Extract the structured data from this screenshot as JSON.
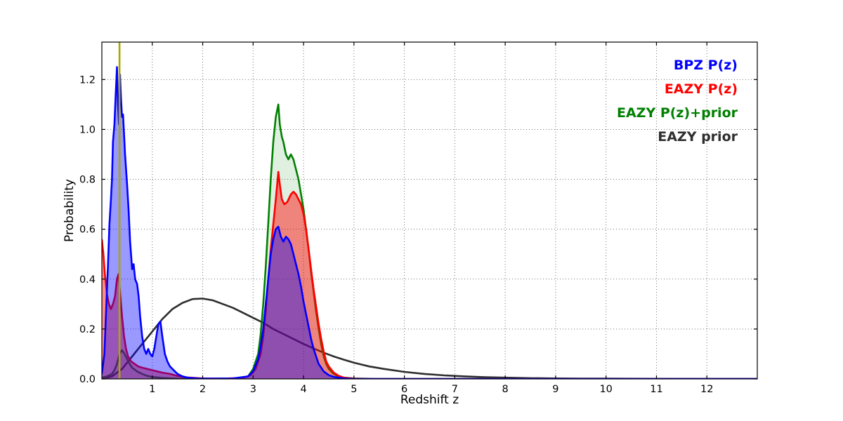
{
  "figure": {
    "background": "#ffffff",
    "frame_color": "#000000",
    "grid_style": "dotted"
  },
  "chart_data": {
    "type": "line",
    "title": "",
    "xlabel": "Redshift z",
    "ylabel": "Probability",
    "xlim": [
      0,
      13
    ],
    "ylim": [
      0,
      1.35
    ],
    "xticks": [
      1,
      2,
      3,
      4,
      5,
      6,
      7,
      8,
      9,
      10,
      11,
      12
    ],
    "yticks": [
      0.0,
      0.2,
      0.4,
      0.6,
      0.8,
      1.0,
      1.2
    ],
    "grid": "dotted",
    "legend_position": "upper right",
    "vline": {
      "x": 0.35,
      "color": "#a8a800",
      "label": "marker-line"
    },
    "series": [
      {
        "name": "BPZ P(z)",
        "color": "#0000ff",
        "fill_opacity": 0.4,
        "points": [
          [
            0,
            0.02
          ],
          [
            0.05,
            0.1
          ],
          [
            0.08,
            0.25
          ],
          [
            0.12,
            0.45
          ],
          [
            0.15,
            0.62
          ],
          [
            0.18,
            0.72
          ],
          [
            0.2,
            0.8
          ],
          [
            0.22,
            0.95
          ],
          [
            0.25,
            1.02
          ],
          [
            0.27,
            1.12
          ],
          [
            0.3,
            1.25
          ],
          [
            0.32,
            1.1
          ],
          [
            0.34,
            1.02
          ],
          [
            0.36,
            1.22
          ],
          [
            0.38,
            1.12
          ],
          [
            0.4,
            1.05
          ],
          [
            0.42,
            1.06
          ],
          [
            0.44,
            0.98
          ],
          [
            0.46,
            0.9
          ],
          [
            0.5,
            0.78
          ],
          [
            0.53,
            0.68
          ],
          [
            0.56,
            0.55
          ],
          [
            0.6,
            0.44
          ],
          [
            0.63,
            0.46
          ],
          [
            0.66,
            0.4
          ],
          [
            0.7,
            0.38
          ],
          [
            0.73,
            0.33
          ],
          [
            0.76,
            0.25
          ],
          [
            0.8,
            0.17
          ],
          [
            0.84,
            0.12
          ],
          [
            0.88,
            0.1
          ],
          [
            0.92,
            0.12
          ],
          [
            0.96,
            0.1
          ],
          [
            1.0,
            0.09
          ],
          [
            1.04,
            0.12
          ],
          [
            1.08,
            0.17
          ],
          [
            1.12,
            0.22
          ],
          [
            1.16,
            0.23
          ],
          [
            1.2,
            0.17
          ],
          [
            1.25,
            0.1
          ],
          [
            1.3,
            0.07
          ],
          [
            1.35,
            0.05
          ],
          [
            1.4,
            0.04
          ],
          [
            1.5,
            0.02
          ],
          [
            1.6,
            0.01
          ],
          [
            1.7,
            0.005
          ],
          [
            1.9,
            0.002
          ],
          [
            2.2,
            0.001
          ],
          [
            2.6,
            0.002
          ],
          [
            2.9,
            0.01
          ],
          [
            3.0,
            0.03
          ],
          [
            3.1,
            0.08
          ],
          [
            3.15,
            0.13
          ],
          [
            3.2,
            0.2
          ],
          [
            3.25,
            0.3
          ],
          [
            3.3,
            0.4
          ],
          [
            3.35,
            0.5
          ],
          [
            3.4,
            0.56
          ],
          [
            3.45,
            0.6
          ],
          [
            3.5,
            0.61
          ],
          [
            3.55,
            0.57
          ],
          [
            3.6,
            0.55
          ],
          [
            3.65,
            0.57
          ],
          [
            3.7,
            0.56
          ],
          [
            3.75,
            0.54
          ],
          [
            3.8,
            0.5
          ],
          [
            3.85,
            0.46
          ],
          [
            3.9,
            0.42
          ],
          [
            3.95,
            0.37
          ],
          [
            4.0,
            0.31
          ],
          [
            4.05,
            0.26
          ],
          [
            4.1,
            0.21
          ],
          [
            4.15,
            0.16
          ],
          [
            4.2,
            0.12
          ],
          [
            4.3,
            0.06
          ],
          [
            4.4,
            0.03
          ],
          [
            4.5,
            0.015
          ],
          [
            4.6,
            0.008
          ],
          [
            4.8,
            0.002
          ],
          [
            5.0,
            0
          ],
          [
            13,
            0
          ]
        ]
      },
      {
        "name": "EAZY P(z)",
        "color": "#ff0000",
        "fill_opacity": 0.45,
        "points": [
          [
            0,
            0.56
          ],
          [
            0.03,
            0.5
          ],
          [
            0.06,
            0.42
          ],
          [
            0.1,
            0.34
          ],
          [
            0.14,
            0.3
          ],
          [
            0.18,
            0.28
          ],
          [
            0.22,
            0.3
          ],
          [
            0.26,
            0.33
          ],
          [
            0.3,
            0.4
          ],
          [
            0.33,
            0.42
          ],
          [
            0.36,
            0.35
          ],
          [
            0.4,
            0.25
          ],
          [
            0.44,
            0.17
          ],
          [
            0.48,
            0.12
          ],
          [
            0.52,
            0.09
          ],
          [
            0.58,
            0.07
          ],
          [
            0.65,
            0.06
          ],
          [
            0.72,
            0.05
          ],
          [
            0.8,
            0.045
          ],
          [
            0.9,
            0.04
          ],
          [
            1.0,
            0.035
          ],
          [
            1.1,
            0.03
          ],
          [
            1.2,
            0.025
          ],
          [
            1.35,
            0.02
          ],
          [
            1.5,
            0.012
          ],
          [
            1.7,
            0.006
          ],
          [
            2.0,
            0.002
          ],
          [
            2.4,
            0.001
          ],
          [
            2.8,
            0.004
          ],
          [
            2.95,
            0.015
          ],
          [
            3.05,
            0.04
          ],
          [
            3.15,
            0.1
          ],
          [
            3.2,
            0.17
          ],
          [
            3.25,
            0.27
          ],
          [
            3.3,
            0.4
          ],
          [
            3.35,
            0.52
          ],
          [
            3.4,
            0.62
          ],
          [
            3.45,
            0.72
          ],
          [
            3.5,
            0.83
          ],
          [
            3.53,
            0.78
          ],
          [
            3.57,
            0.72
          ],
          [
            3.62,
            0.7
          ],
          [
            3.68,
            0.71
          ],
          [
            3.75,
            0.74
          ],
          [
            3.8,
            0.75
          ],
          [
            3.85,
            0.74
          ],
          [
            3.9,
            0.72
          ],
          [
            3.95,
            0.7
          ],
          [
            4.0,
            0.66
          ],
          [
            4.05,
            0.6
          ],
          [
            4.1,
            0.52
          ],
          [
            4.15,
            0.44
          ],
          [
            4.2,
            0.36
          ],
          [
            4.25,
            0.29
          ],
          [
            4.3,
            0.22
          ],
          [
            4.35,
            0.16
          ],
          [
            4.4,
            0.11
          ],
          [
            4.45,
            0.07
          ],
          [
            4.5,
            0.05
          ],
          [
            4.6,
            0.025
          ],
          [
            4.7,
            0.012
          ],
          [
            4.8,
            0.005
          ],
          [
            5.0,
            0.001
          ],
          [
            5.3,
            0
          ],
          [
            13,
            0
          ]
        ]
      },
      {
        "name": "EAZY P(z)+prior",
        "color": "#008000",
        "fill_opacity": 0.12,
        "points": [
          [
            0,
            0.005
          ],
          [
            0.1,
            0.01
          ],
          [
            0.2,
            0.02
          ],
          [
            0.25,
            0.035
          ],
          [
            0.3,
            0.06
          ],
          [
            0.35,
            0.1
          ],
          [
            0.4,
            0.115
          ],
          [
            0.45,
            0.1
          ],
          [
            0.5,
            0.08
          ],
          [
            0.55,
            0.06
          ],
          [
            0.6,
            0.045
          ],
          [
            0.7,
            0.03
          ],
          [
            0.8,
            0.02
          ],
          [
            0.9,
            0.012
          ],
          [
            1.0,
            0.008
          ],
          [
            1.2,
            0.004
          ],
          [
            1.5,
            0.001
          ],
          [
            2.0,
            0
          ],
          [
            2.7,
            0.002
          ],
          [
            2.9,
            0.01
          ],
          [
            3.0,
            0.04
          ],
          [
            3.1,
            0.1
          ],
          [
            3.15,
            0.18
          ],
          [
            3.2,
            0.3
          ],
          [
            3.25,
            0.45
          ],
          [
            3.3,
            0.62
          ],
          [
            3.35,
            0.8
          ],
          [
            3.4,
            0.95
          ],
          [
            3.45,
            1.05
          ],
          [
            3.5,
            1.1
          ],
          [
            3.53,
            1.02
          ],
          [
            3.57,
            0.97
          ],
          [
            3.6,
            0.95
          ],
          [
            3.65,
            0.9
          ],
          [
            3.7,
            0.88
          ],
          [
            3.75,
            0.9
          ],
          [
            3.8,
            0.88
          ],
          [
            3.85,
            0.84
          ],
          [
            3.9,
            0.8
          ],
          [
            3.95,
            0.74
          ],
          [
            4.0,
            0.68
          ],
          [
            4.05,
            0.6
          ],
          [
            4.1,
            0.52
          ],
          [
            4.15,
            0.43
          ],
          [
            4.2,
            0.35
          ],
          [
            4.25,
            0.27
          ],
          [
            4.3,
            0.2
          ],
          [
            4.35,
            0.14
          ],
          [
            4.4,
            0.09
          ],
          [
            4.45,
            0.06
          ],
          [
            4.5,
            0.04
          ],
          [
            4.6,
            0.02
          ],
          [
            4.7,
            0.01
          ],
          [
            4.8,
            0.005
          ],
          [
            5.0,
            0.002
          ],
          [
            5.5,
            0
          ],
          [
            13,
            0
          ]
        ]
      },
      {
        "name": "EAZY prior",
        "color": "#2e2e2e",
        "fill_opacity": 0,
        "points": [
          [
            0,
            0
          ],
          [
            0.2,
            0.01
          ],
          [
            0.4,
            0.04
          ],
          [
            0.6,
            0.09
          ],
          [
            0.8,
            0.14
          ],
          [
            1.0,
            0.19
          ],
          [
            1.2,
            0.24
          ],
          [
            1.4,
            0.28
          ],
          [
            1.6,
            0.305
          ],
          [
            1.8,
            0.32
          ],
          [
            2.0,
            0.322
          ],
          [
            2.2,
            0.315
          ],
          [
            2.4,
            0.3
          ],
          [
            2.6,
            0.285
          ],
          [
            2.8,
            0.265
          ],
          [
            3.0,
            0.245
          ],
          [
            3.2,
            0.225
          ],
          [
            3.4,
            0.2
          ],
          [
            3.6,
            0.18
          ],
          [
            3.8,
            0.16
          ],
          [
            4.0,
            0.14
          ],
          [
            4.2,
            0.122
          ],
          [
            4.4,
            0.105
          ],
          [
            4.6,
            0.09
          ],
          [
            4.8,
            0.077
          ],
          [
            5.0,
            0.065
          ],
          [
            5.3,
            0.05
          ],
          [
            5.6,
            0.04
          ],
          [
            6.0,
            0.028
          ],
          [
            6.4,
            0.02
          ],
          [
            6.8,
            0.014
          ],
          [
            7.2,
            0.01
          ],
          [
            7.6,
            0.007
          ],
          [
            8.0,
            0.005
          ],
          [
            8.5,
            0.003
          ],
          [
            9.0,
            0.002
          ],
          [
            9.5,
            0.0015
          ],
          [
            10,
            0.001
          ],
          [
            11,
            0.0005
          ],
          [
            12,
            0.0002
          ],
          [
            13,
            0
          ]
        ]
      }
    ]
  }
}
